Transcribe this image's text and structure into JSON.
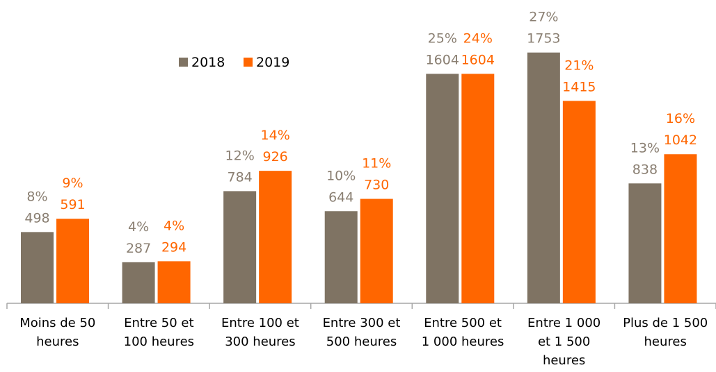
{
  "chart_data": {
    "type": "bar",
    "categories": [
      "Moins de 50 heures",
      "Entre 50 et 100 heures",
      "Entre 100 et 300 heures",
      "Entre 300 et 500 heures",
      "Entre 500 et 1 000 heures",
      "Entre 1 000 et 1 500 heures",
      "Plus de 1 500 heures"
    ],
    "series": [
      {
        "name": "2018",
        "color": "#7f7363",
        "label_color": "#8a7f72",
        "values": [
          498,
          287,
          784,
          644,
          1604,
          1753,
          838
        ],
        "percent_labels": [
          "8%",
          "4%",
          "12%",
          "10%",
          "25%",
          "27%",
          "13%"
        ]
      },
      {
        "name": "2019",
        "color": "#ff6600",
        "label_color": "#ff6600",
        "values": [
          591,
          294,
          926,
          730,
          1604,
          1415,
          1042
        ],
        "percent_labels": [
          "9%",
          "4%",
          "14%",
          "11%",
          "24%",
          "21%",
          "16%"
        ]
      }
    ],
    "ylim": [
      0,
      1800
    ],
    "legend": "top"
  }
}
